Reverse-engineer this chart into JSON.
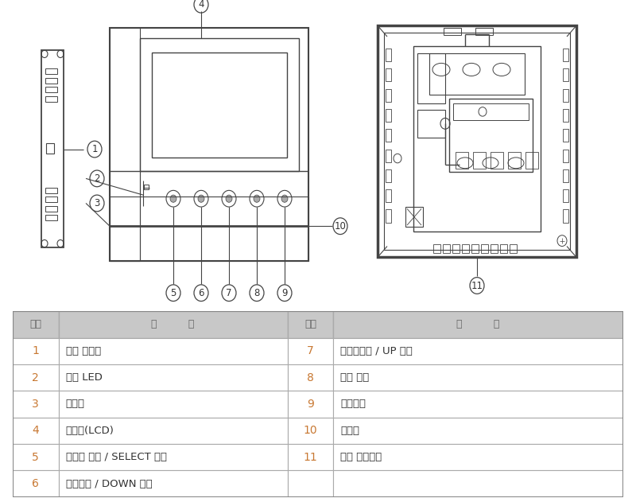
{
  "bg_color": "#ffffff",
  "lc": "#444444",
  "lc_light": "#888888",
  "table_header_bg": "#c8c8c8",
  "table_border_color": "#aaaaaa",
  "table_header_text_color": "#666666",
  "table_num_color": "#c87832",
  "table_content_color": "#333333",
  "header_texts": [
    "번호",
    "내         용",
    "번호",
    "내         용"
  ],
  "table_data": [
    [
      "1",
      "전원 스위치",
      "7",
      "문열림버튼 / UP 버튼"
    ],
    [
      "2",
      "전원 LED",
      "8",
      "메뉴 버튼"
    ],
    [
      "3",
      "마이크",
      "9",
      "통화버튼"
    ],
    [
      "4",
      "모니터(LCD)",
      "10",
      "스피커"
    ],
    [
      "5",
      "모니터 버튼 / SELECT 버튼",
      "11",
      "외부 연결단자"
    ],
    [
      "6",
      "경비버튼 / DOWN 버튼",
      "",
      ""
    ]
  ]
}
